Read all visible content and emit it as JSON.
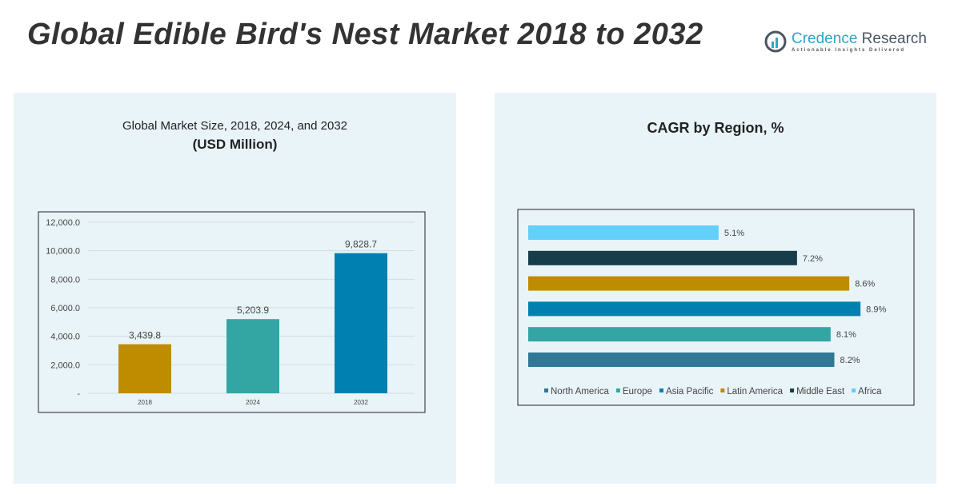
{
  "header": {
    "title": "Global Edible Bird's Nest Market 2018 to 2032",
    "logo_name_a": "Credence",
    "logo_name_b": " Research",
    "logo_tagline": "Actionable Insights Delivered"
  },
  "chart_data": [
    {
      "type": "bar",
      "title": "Global Market Size, 2018, 2024, and 2032",
      "subtitle": "(USD Million)",
      "categories": [
        "2018",
        "2024",
        "2032"
      ],
      "values": [
        3439.8,
        5203.9,
        9828.7
      ],
      "value_labels": [
        "3,439.8",
        "5,203.9",
        "9,828.7"
      ],
      "colors": [
        "#bf8c00",
        "#33a6a4",
        "#0080b0"
      ],
      "yticks": [
        "-",
        "2,000.0",
        "4,000.0",
        "6,000.0",
        "8,000.0",
        "10,000.0",
        "12,000.0"
      ],
      "ylim": [
        0,
        12000
      ],
      "grid": true
    },
    {
      "type": "bar",
      "orientation": "horizontal",
      "title": "CAGR by Region, %",
      "categories": [
        "North America",
        "Europe",
        "Asia Pacific",
        "Latin America",
        "Middle East",
        "Africa"
      ],
      "values": [
        8.2,
        8.1,
        8.9,
        8.6,
        7.2,
        5.1
      ],
      "value_labels": [
        "8.2%",
        "8.1%",
        "8.9%",
        "8.6%",
        "7.2%",
        "5.1%"
      ],
      "colors": [
        "#307896",
        "#33a6a4",
        "#0080b0",
        "#bf8c00",
        "#173c4c",
        "#62d0f8"
      ],
      "legend": "bottom"
    }
  ]
}
